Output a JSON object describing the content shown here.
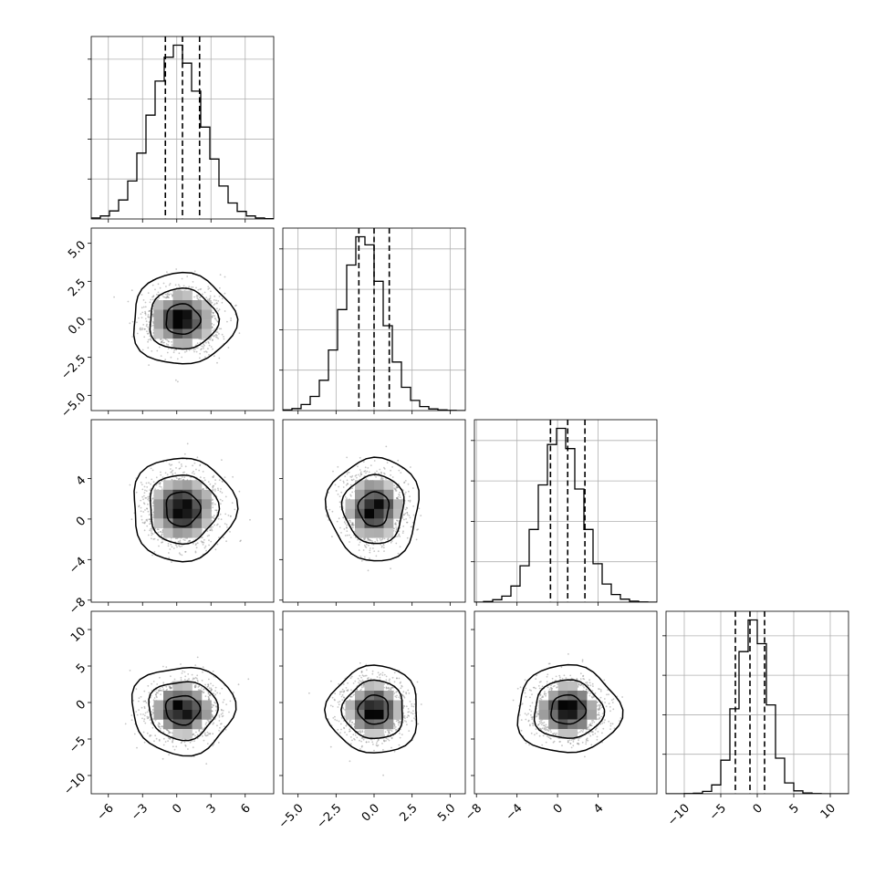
{
  "chart_data": {
    "type": "corner",
    "ndim": 4,
    "colors": {
      "ink": "#000000",
      "grid": "#b0b0b0",
      "scatter": "#808080"
    },
    "quantiles": [
      0.16,
      0.5,
      0.84
    ],
    "contour_levels": [
      0.393,
      0.865,
      0.989
    ],
    "params": [
      {
        "mean": 0.5,
        "std": 1.5,
        "range": [
          -7.5,
          8.5
        ],
        "ticks": [
          -6,
          -3,
          0,
          3,
          6
        ],
        "tick_labels": [
          "−6",
          "−3",
          "0",
          "3",
          "6"
        ],
        "quantile_values": [
          -1.0,
          0.5,
          2.0
        ],
        "hist": [
          5,
          15,
          40,
          95,
          190,
          330,
          520,
          690,
          810,
          870,
          780,
          640,
          460,
          300,
          165,
          80,
          38,
          15,
          5,
          2
        ]
      },
      {
        "mean": 0.0,
        "std": 1.0,
        "range": [
          -6.0,
          6.0
        ],
        "ticks": [
          -5.0,
          -2.5,
          0.0,
          2.5,
          5.0
        ],
        "tick_labels": [
          "−5.0",
          "−2.5",
          "0.0",
          "2.5",
          "5.0"
        ],
        "quantile_values": [
          -1.0,
          0.0,
          1.0
        ],
        "hist": [
          3,
          10,
          30,
          70,
          150,
          300,
          500,
          720,
          860,
          820,
          640,
          420,
          240,
          115,
          50,
          20,
          8,
          3,
          1,
          0
        ]
      },
      {
        "mean": 1.0,
        "std": 1.7,
        "range": [
          -8.2,
          9.8
        ],
        "ticks": [
          -8,
          -4,
          0,
          4
        ],
        "tick_labels": [
          "−8",
          "−4",
          "0",
          "4"
        ],
        "quantile_values": [
          -0.7,
          1.0,
          2.7
        ],
        "hist": [
          0,
          3,
          12,
          30,
          80,
          180,
          360,
          580,
          780,
          860,
          760,
          560,
          360,
          190,
          90,
          38,
          15,
          5,
          1,
          0
        ]
      },
      {
        "mean": -1.0,
        "std": 2.0,
        "range": [
          -12.5,
          12.5
        ],
        "ticks": [
          -10,
          -5,
          0,
          5,
          10
        ],
        "tick_labels": [
          "−10",
          "−5",
          "0",
          "5",
          "10"
        ],
        "quantile_values": [
          -3.0,
          -1.0,
          1.0
        ],
        "hist": [
          0,
          0,
          1,
          3,
          12,
          45,
          170,
          430,
          720,
          880,
          760,
          450,
          180,
          55,
          15,
          4,
          1,
          0,
          0,
          0
        ]
      }
    ],
    "y_tick_labels": {
      "1": {
        "ticks": [
          5.0,
          2.5,
          0.0,
          -2.5,
          -5.0
        ],
        "labels": [
          "5.0",
          "2.5",
          "0.0",
          "−2.5",
          "−5.0"
        ]
      },
      "2": {
        "ticks": [
          4,
          0,
          -4,
          -8
        ],
        "labels": [
          "4",
          "0",
          "−4",
          "−8"
        ]
      },
      "3": {
        "ticks": [
          10,
          5,
          0,
          -5,
          -10
        ],
        "labels": [
          "10",
          "5",
          "0",
          "−5",
          "−10"
        ]
      }
    }
  }
}
